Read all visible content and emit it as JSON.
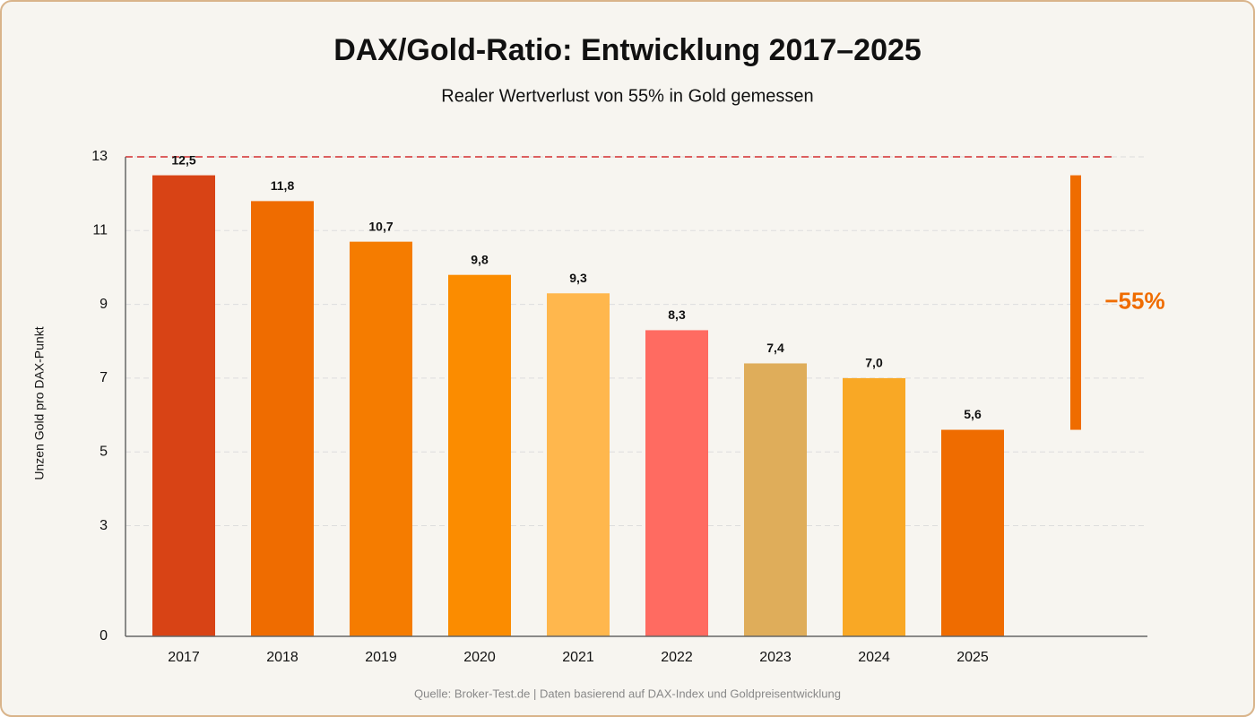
{
  "chart_data": {
    "type": "bar",
    "title": "DAX/Gold-Ratio: Entwicklung 2017–2025",
    "subtitle": "Realer Wertverlust von 55% in Gold gemessen",
    "y_label": "Unzen Gold pro DAX-Punkt",
    "source": "Quelle: Broker-Test.de | Daten basierend auf DAX-Index und Goldpreisentwicklung",
    "categories": [
      "2017",
      "2018",
      "2019",
      "2020",
      "2021",
      "2022",
      "2023",
      "2024",
      "2025"
    ],
    "values": [
      12.5,
      11.8,
      10.7,
      9.8,
      9.3,
      8.3,
      7.4,
      7.0,
      5.6
    ],
    "value_labels": [
      "12,5",
      "11,8",
      "10,7",
      "9,8",
      "9,3",
      "8,3",
      "7,4",
      "7,0",
      "5,6"
    ],
    "colors": [
      "#d84315",
      "#ef6c00",
      "#f57c00",
      "#fb8c00",
      "#ffb74d",
      "#ff6b61",
      "#dfad5a",
      "#f9a825",
      "#ef6c00"
    ],
    "ylim": [
      0,
      13
    ],
    "yticks": [
      0,
      3,
      5,
      7,
      9,
      11,
      13
    ],
    "grid": true,
    "reference_line": {
      "value": 13,
      "color": "#d32f2f"
    },
    "change_annotation": {
      "text": "−55%",
      "color": "#ef6c00"
    }
  }
}
